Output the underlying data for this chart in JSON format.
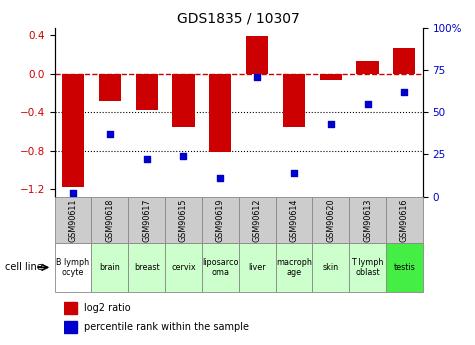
{
  "title": "GDS1835 / 10307",
  "samples": [
    "GSM90611",
    "GSM90618",
    "GSM90617",
    "GSM90615",
    "GSM90619",
    "GSM90612",
    "GSM90614",
    "GSM90620",
    "GSM90613",
    "GSM90616"
  ],
  "cell_lines": [
    "B lymph\nocyte",
    "brain",
    "breast",
    "cervix",
    "liposarco\noma",
    "liver",
    "macroph\nage",
    "skin",
    "T lymph\noblast",
    "testis"
  ],
  "log2_ratio": [
    -1.18,
    -0.28,
    -0.38,
    -0.55,
    -0.82,
    0.39,
    -0.55,
    -0.07,
    0.13,
    0.27
  ],
  "percentile_rank": [
    2,
    37,
    22,
    24,
    11,
    71,
    14,
    43,
    55,
    62
  ],
  "bar_color": "#cc0000",
  "dot_color": "#0000cc",
  "dashed_line_color": "#cc0000",
  "ylim_left": [
    -1.28,
    0.48
  ],
  "ylim_right": [
    0,
    100
  ],
  "yticks_left": [
    0.4,
    0.0,
    -0.4,
    -0.8,
    -1.2
  ],
  "yticks_right": [
    100,
    75,
    50,
    25,
    0
  ],
  "cell_line_colors": [
    "#ffffff",
    "#ccffcc",
    "#ccffcc",
    "#ccffcc",
    "#ccffcc",
    "#ccffcc",
    "#ccffcc",
    "#ccffcc",
    "#ccffcc",
    "#44ee44"
  ],
  "legend_items": [
    "log2 ratio",
    "percentile rank within the sample"
  ],
  "legend_colors": [
    "#cc0000",
    "#0000cc"
  ],
  "bar_width": 0.6,
  "gsm_bg": "#cccccc",
  "border_color": "#888888"
}
